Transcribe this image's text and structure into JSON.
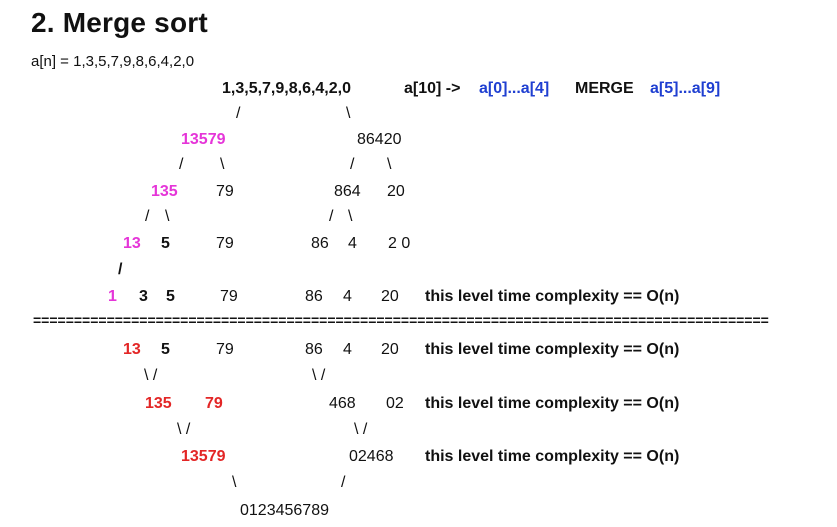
{
  "colors": {
    "text": "#111111",
    "blue": "#1f3fd1",
    "magenta": "#e535d8",
    "red": "#e32626"
  },
  "heading": "2. Merge sort",
  "array_definition": "a[n] = 1,3,5,7,9,8,6,4,2,0",
  "top_line": {
    "sequence": "1,3,5,7,9,8,6,4,2,0",
    "a10": "a[10] ->",
    "range_left": "a[0]...a[4]",
    "merge": "MERGE",
    "range_right": "a[5]...a[9]"
  },
  "split": {
    "slash_1a": "/",
    "backslash_1a": "\\",
    "level1_left": "13579",
    "level1_right": "86420",
    "slash_2a": "/",
    "backslash_2a": "\\",
    "slash_2b": "/",
    "backslash_2b": "\\",
    "level2_a": "135",
    "level2_b": "79",
    "level2_c": "864",
    "level2_d": "20",
    "slash_3a": "/",
    "backslash_3a": "\\",
    "slash_3b": "/",
    "backslash_3b": "\\",
    "level3_a": "13",
    "level3_b": "5",
    "level3_c": "79",
    "level3_d": "86",
    "level3_e": "4",
    "level3_f": "2 0",
    "slash_4a": "/",
    "level4_a": "1",
    "level4_b": "3",
    "level4_c": "5",
    "level4_d": "79",
    "level4_e": "86",
    "level4_f": "4",
    "level4_g": "20",
    "complexity": "this level time complexity == O(n)"
  },
  "separator": "==========================================================================================",
  "merge": {
    "row1_a": "13",
    "row1_b": "5",
    "row1_c": "79",
    "row1_d": "86",
    "row1_e": "4",
    "row1_f": "20",
    "row1_complexity": "this level time complexity == O(n)",
    "link1": "\\ /",
    "link2": "\\ /",
    "row2_a": "135",
    "row2_b": "79",
    "row2_c": "468",
    "row2_d": "02",
    "row2_complexity": "this level time complexity == O(n)",
    "link3": "\\ /",
    "link4": "\\ /",
    "row3_a": "13579",
    "row3_b": "02468",
    "row3_complexity": "this level time complexity == O(n)",
    "link5": "\\",
    "link6": "/",
    "final": "0123456789"
  }
}
